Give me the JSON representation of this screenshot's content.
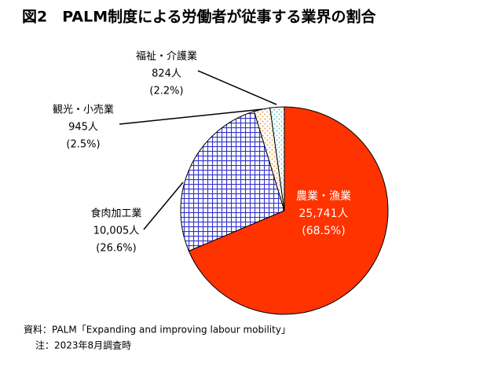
{
  "chart_data": {
    "type": "pie",
    "title": "図2　PALM制度による労働者が従事する業界の割合",
    "categories": [
      "農業・漁業",
      "食肉加工業",
      "観光・小売業",
      "福祉・介護業"
    ],
    "values": [
      68.5,
      26.6,
      2.5,
      2.2
    ],
    "value_labels": [
      "(68.5%)",
      "(26.6%)",
      "(2.5%)",
      "(2.2%)"
    ],
    "counts": [
      25741,
      10005,
      945,
      824
    ],
    "count_labels": [
      "25,741人",
      "10,005人",
      "945人",
      "824人"
    ],
    "colors": [
      "#ff3300",
      "#3333cc",
      "#f0a050",
      "#66cccc"
    ],
    "patterns": [
      "solid",
      "grid",
      "dots",
      "dots"
    ],
    "notes": [
      "資料：PALM「Expanding and improving labour mobility」",
      "注：2023年8月調査時"
    ]
  }
}
